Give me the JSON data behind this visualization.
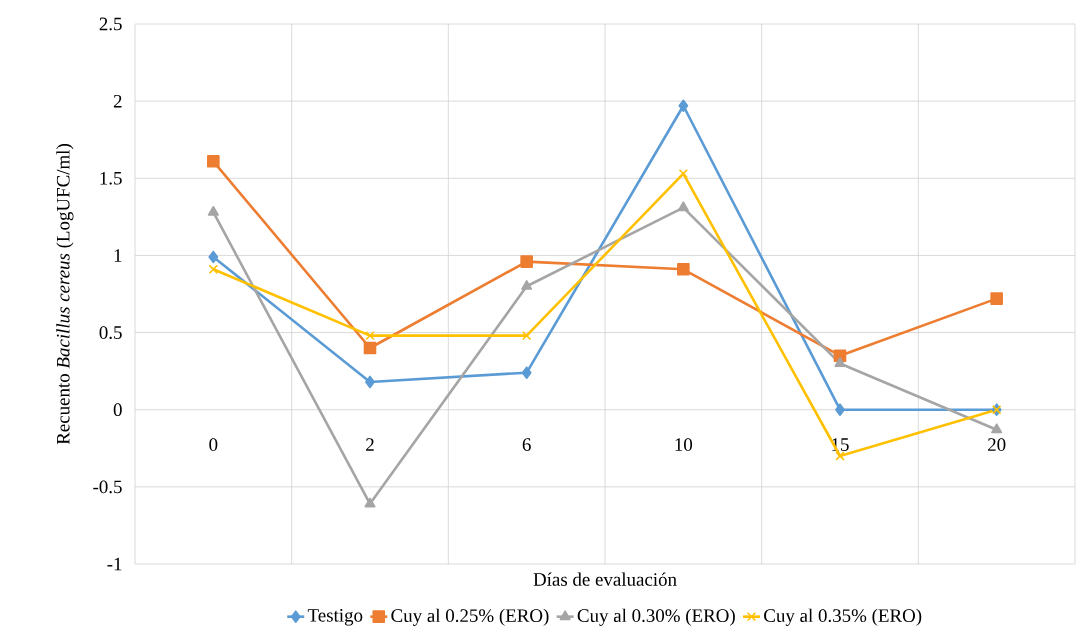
{
  "chart_data": {
    "type": "line",
    "xlabel": "Días de evaluación",
    "ylabel": "Recuento *Bacillus cereus* (LogUFC/ml)",
    "categories": [
      "0",
      "2",
      "6",
      "10",
      "15",
      "20"
    ],
    "series": [
      {
        "name": "Testigo",
        "color": "#5b9bd5",
        "marker": "diamond",
        "values": [
          0.99,
          0.18,
          0.24,
          1.97,
          0.0,
          0.0
        ]
      },
      {
        "name": "Cuy al 0.25% (ERO)",
        "color": "#ed7d31",
        "marker": "square",
        "values": [
          1.61,
          0.4,
          0.96,
          0.91,
          0.35,
          0.72
        ]
      },
      {
        "name": "Cuy al 0.30% (ERO)",
        "color": "#a5a5a5",
        "marker": "triangle",
        "values": [
          1.28,
          -0.61,
          0.8,
          1.31,
          0.3,
          -0.13
        ]
      },
      {
        "name": "Cuy al 0.35% (ERO)",
        "color": "#ffc000",
        "marker": "cross",
        "values": [
          0.91,
          0.48,
          0.48,
          1.53,
          -0.3,
          0.0
        ]
      }
    ],
    "ylim": [
      -1,
      2.5
    ],
    "yticks": [
      -1,
      -0.5,
      0,
      0.5,
      1,
      1.5,
      2,
      2.5
    ],
    "grid": true,
    "legend": "bottom",
    "line_style": "solid"
  }
}
